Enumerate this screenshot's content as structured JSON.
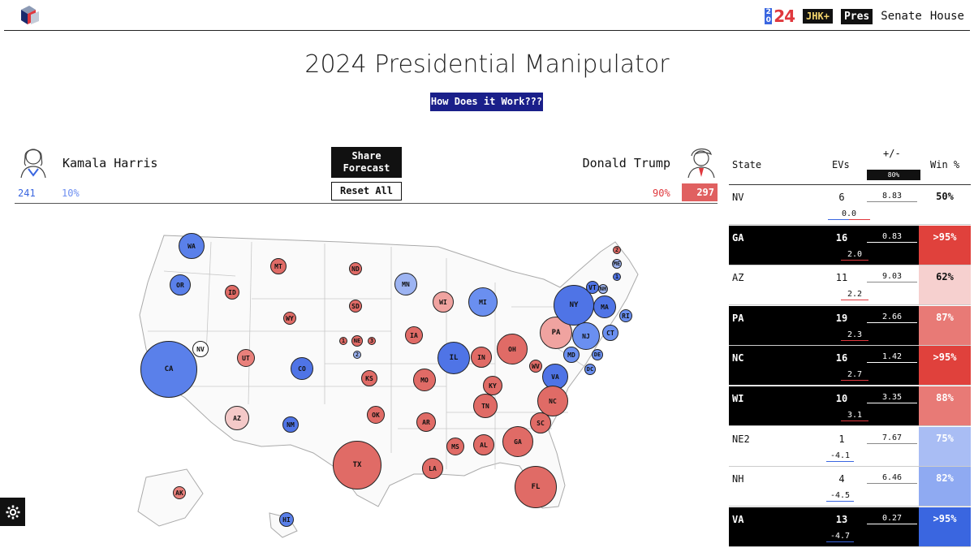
{
  "nav": {
    "year_small_top": "2",
    "year_small_bottom": "0",
    "year_big": "24",
    "jhk_label": "JHK+",
    "pres_label": "Pres",
    "senate_label": "Senate",
    "house_label": "House"
  },
  "page": {
    "title": "2024 Presidential Manipulator",
    "how_button": "How Does it Work???"
  },
  "candidates": {
    "harris": {
      "name": "Kamala Harris",
      "ev": "241",
      "pct": "10%"
    },
    "trump": {
      "name": "Donald Trump",
      "ev": "297",
      "pct": "90%"
    },
    "share_label": "Share Forecast",
    "reset_label": "Reset All"
  },
  "colors": {
    "dem_strong": "#3a66e0",
    "dem_light": "#8faaf2",
    "rep_strong": "#e05a56",
    "rep_light": "#f4c9c8",
    "nav_button": "#1a1f8a"
  },
  "map_states": [
    {
      "label": "WA",
      "color": "#5a80ea"
    },
    {
      "label": "OR",
      "color": "#5a80ea"
    },
    {
      "label": "ID",
      "color": "#e06b66"
    },
    {
      "label": "MT",
      "color": "#e06b66"
    },
    {
      "label": "ND",
      "color": "#e06b66"
    },
    {
      "label": "SD",
      "color": "#e06b66"
    },
    {
      "label": "WY",
      "color": "#e06b66"
    },
    {
      "label": "MN",
      "color": "#9db4f2"
    },
    {
      "label": "WI",
      "color": "#f0a3a0"
    },
    {
      "label": "MI",
      "color": "#6a8ff0"
    },
    {
      "label": "NV",
      "color": "#ffffff"
    },
    {
      "label": "CA",
      "color": "#5a80ea"
    },
    {
      "label": "UT",
      "color": "#e9807b"
    },
    {
      "label": "CO",
      "color": "#4f74e6"
    },
    {
      "label": "NE",
      "color": "#e06b66"
    },
    {
      "label": "1",
      "color": "#e06b66"
    },
    {
      "label": "3",
      "color": "#e06b66"
    },
    {
      "label": "2",
      "color": "#9db4f2"
    },
    {
      "label": "KS",
      "color": "#e06b66"
    },
    {
      "label": "IA",
      "color": "#e06b66"
    },
    {
      "label": "IL",
      "color": "#4f74e6"
    },
    {
      "label": "IN",
      "color": "#e06b66"
    },
    {
      "label": "OH",
      "color": "#e06b66"
    },
    {
      "label": "MO",
      "color": "#e06b66"
    },
    {
      "label": "KY",
      "color": "#e06b66"
    },
    {
      "label": "WV",
      "color": "#e06b66"
    },
    {
      "label": "PA",
      "color": "#f0a3a0"
    },
    {
      "label": "NY",
      "color": "#4f74e6"
    },
    {
      "label": "VT",
      "color": "#4f74e6"
    },
    {
      "label": "NH",
      "color": "#9db4f2"
    },
    {
      "label": "ME",
      "color": "#9db4f2"
    },
    {
      "label": "2",
      "color": "#e06b66"
    },
    {
      "label": "1",
      "color": "#4f74e6"
    },
    {
      "label": "MA",
      "color": "#4f74e6"
    },
    {
      "label": "RI",
      "color": "#6a8ff0"
    },
    {
      "label": "CT",
      "color": "#6a8ff0"
    },
    {
      "label": "NJ",
      "color": "#6a8ff0"
    },
    {
      "label": "MD",
      "color": "#6a8ff0"
    },
    {
      "label": "DE",
      "color": "#6a8ff0"
    },
    {
      "label": "DC",
      "color": "#6a8ff0"
    },
    {
      "label": "VA",
      "color": "#4f74e6"
    },
    {
      "label": "NC",
      "color": "#e06b66"
    },
    {
      "label": "TN",
      "color": "#e06b66"
    },
    {
      "label": "SC",
      "color": "#e06b66"
    },
    {
      "label": "GA",
      "color": "#e06b66"
    },
    {
      "label": "AL",
      "color": "#e06b66"
    },
    {
      "label": "MS",
      "color": "#e06b66"
    },
    {
      "label": "AR",
      "color": "#e06b66"
    },
    {
      "label": "LA",
      "color": "#e06b66"
    },
    {
      "label": "OK",
      "color": "#e06b66"
    },
    {
      "label": "TX",
      "color": "#e06b66"
    },
    {
      "label": "FL",
      "color": "#e06b66"
    },
    {
      "label": "AZ",
      "color": "#f4c9c8"
    },
    {
      "label": "NM",
      "color": "#4f74e6"
    },
    {
      "label": "AK",
      "color": "#e9807b"
    },
    {
      "label": "HI",
      "color": "#5a80ea"
    }
  ],
  "table": {
    "headers": {
      "state": "State",
      "evs": "EVs",
      "pm": "+/-",
      "win": "Win %"
    },
    "slider_label": "80%",
    "rows": [
      {
        "state": "NV",
        "ev": "6",
        "margin": "8.83",
        "shift": "0.0",
        "win": "50%",
        "win_color": "#ffffff",
        "dark": false,
        "shift_side": "mid"
      },
      {
        "state": "GA",
        "ev": "16",
        "margin": "0.83",
        "shift": "2.0",
        "win": ">95%",
        "win_color": "#e0413c",
        "dark": true,
        "shift_side": "rep"
      },
      {
        "state": "AZ",
        "ev": "11",
        "margin": "9.03",
        "shift": "2.2",
        "win": "62%",
        "win_color": "#f6d0cf",
        "dark": false,
        "shift_side": "rep"
      },
      {
        "state": "PA",
        "ev": "19",
        "margin": "2.66",
        "shift": "2.3",
        "win": "87%",
        "win_color": "#e87a76",
        "dark": true,
        "shift_side": "rep"
      },
      {
        "state": "NC",
        "ev": "16",
        "margin": "1.42",
        "shift": "2.7",
        "win": ">95%",
        "win_color": "#e0413c",
        "dark": true,
        "shift_side": "rep"
      },
      {
        "state": "WI",
        "ev": "10",
        "margin": "3.35",
        "shift": "3.1",
        "win": "88%",
        "win_color": "#e87a76",
        "dark": true,
        "shift_side": "rep"
      },
      {
        "state": "NE2",
        "ev": "1",
        "margin": "7.67",
        "shift": "-4.1",
        "win": "75%",
        "win_color": "#a9bdf4",
        "dark": false,
        "shift_side": "dem"
      },
      {
        "state": "NH",
        "ev": "4",
        "margin": "6.46",
        "shift": "-4.5",
        "win": "82%",
        "win_color": "#8faaf2",
        "dark": false,
        "shift_side": "dem"
      },
      {
        "state": "VA",
        "ev": "13",
        "margin": "0.27",
        "shift": "-4.7",
        "win": ">95%",
        "win_color": "#3a66e0",
        "dark": true,
        "shift_side": "dem"
      }
    ]
  }
}
